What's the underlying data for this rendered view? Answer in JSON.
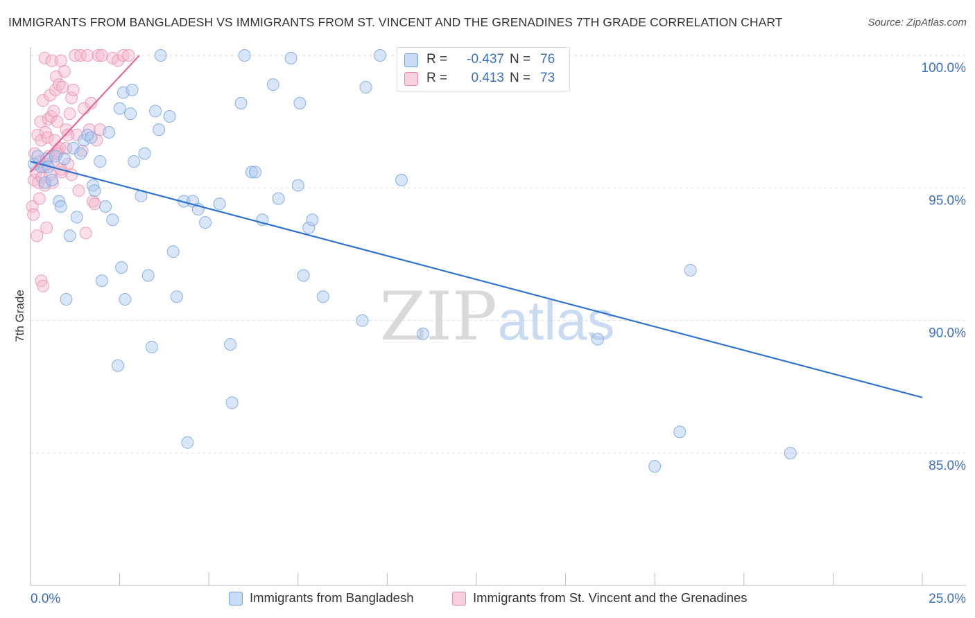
{
  "title": "IMMIGRANTS FROM BANGLADESH VS IMMIGRANTS FROM ST. VINCENT AND THE GRENADINES 7TH GRADE CORRELATION CHART",
  "source": "Source: ZipAtlas.com",
  "watermark": {
    "zip": "ZIP",
    "atlas": "atlas"
  },
  "colors": {
    "blue": "#a8c8f0",
    "blue_edge": "#6f9fe0",
    "blue_line": "#2f73d0",
    "pink": "#f5b8cc",
    "pink_edge": "#e98aaa",
    "pink_line": "#e4689a",
    "axis_text": "#3b6fc4",
    "grid": "#dddddd"
  },
  "legend": {
    "rows": [
      {
        "r_label": "R =",
        "r_value": "-0.437",
        "n_label": "N =",
        "n_value": "76",
        "color": "#a8c8f0"
      },
      {
        "r_label": "R =",
        "r_value": "0.413",
        "n_label": "N =",
        "n_value": "73",
        "color": "#f5b8cc"
      }
    ]
  },
  "chart_data": {
    "type": "scatter",
    "title": "IMMIGRANTS FROM BANGLADESH VS IMMIGRANTS FROM ST. VINCENT AND THE GRENADINES 7TH GRADE CORRELATION CHART",
    "xlabel": "",
    "ylabel": "7th Grade",
    "xlim": [
      0,
      25
    ],
    "ylim": [
      80.5,
      100.7
    ],
    "x_tick_labels": [
      "0.0%",
      "25.0%"
    ],
    "y_ticks": [
      85,
      90,
      95,
      100
    ],
    "y_tick_labels": [
      "85.0%",
      "90.0%",
      "95.0%",
      "100.0%"
    ],
    "legend_position": "top-center",
    "series": [
      {
        "name": "Immigrants from Bangladesh",
        "color": "#a8c8f0",
        "trend": {
          "x": [
            0,
            25
          ],
          "y": [
            96.0,
            87.1
          ]
        },
        "points": [
          [
            0.1,
            95.9
          ],
          [
            0.2,
            96.2
          ],
          [
            0.3,
            95.8
          ],
          [
            0.4,
            95.2
          ],
          [
            0.45,
            96.1
          ],
          [
            0.5,
            95.8
          ],
          [
            0.6,
            95.3
          ],
          [
            0.7,
            96.2
          ],
          [
            0.8,
            94.5
          ],
          [
            0.85,
            94.3
          ],
          [
            0.95,
            96.1
          ],
          [
            1.0,
            90.8
          ],
          [
            1.1,
            93.2
          ],
          [
            1.2,
            96.5
          ],
          [
            1.3,
            93.9
          ],
          [
            1.4,
            96.3
          ],
          [
            1.5,
            96.8
          ],
          [
            1.6,
            97.0
          ],
          [
            1.7,
            96.9
          ],
          [
            1.75,
            95.1
          ],
          [
            1.8,
            94.9
          ],
          [
            1.95,
            96.0
          ],
          [
            2.0,
            91.5
          ],
          [
            2.1,
            94.3
          ],
          [
            2.2,
            97.1
          ],
          [
            2.3,
            93.8
          ],
          [
            2.45,
            88.3
          ],
          [
            2.5,
            98.0
          ],
          [
            2.55,
            92.0
          ],
          [
            2.6,
            98.6
          ],
          [
            2.65,
            90.8
          ],
          [
            2.8,
            97.8
          ],
          [
            2.85,
            98.7
          ],
          [
            2.9,
            96.0
          ],
          [
            3.1,
            94.7
          ],
          [
            3.2,
            96.3
          ],
          [
            3.3,
            91.7
          ],
          [
            3.4,
            89.0
          ],
          [
            3.5,
            97.9
          ],
          [
            3.6,
            97.2
          ],
          [
            3.65,
            100.0
          ],
          [
            3.9,
            97.7
          ],
          [
            4.0,
            92.6
          ],
          [
            4.1,
            90.9
          ],
          [
            4.3,
            94.5
          ],
          [
            4.4,
            85.4
          ],
          [
            4.55,
            94.5
          ],
          [
            4.7,
            94.2
          ],
          [
            4.9,
            93.7
          ],
          [
            5.3,
            94.4
          ],
          [
            5.6,
            89.1
          ],
          [
            5.65,
            86.9
          ],
          [
            5.9,
            98.2
          ],
          [
            6.0,
            100.0
          ],
          [
            6.2,
            95.6
          ],
          [
            6.3,
            95.6
          ],
          [
            6.5,
            93.8
          ],
          [
            6.8,
            98.9
          ],
          [
            6.95,
            94.6
          ],
          [
            7.3,
            99.9
          ],
          [
            7.5,
            95.1
          ],
          [
            7.55,
            98.2
          ],
          [
            7.65,
            91.7
          ],
          [
            7.8,
            93.5
          ],
          [
            7.9,
            93.8
          ],
          [
            8.2,
            90.9
          ],
          [
            9.3,
            90.0
          ],
          [
            9.4,
            98.8
          ],
          [
            9.8,
            100.0
          ],
          [
            10.4,
            95.3
          ],
          [
            11.0,
            89.5
          ],
          [
            15.9,
            89.3
          ],
          [
            17.5,
            84.5
          ],
          [
            18.2,
            85.8
          ],
          [
            18.5,
            91.9
          ],
          [
            21.3,
            85.0
          ]
        ]
      },
      {
        "name": "Immigrants from St. Vincent and the Grenadines",
        "color": "#f5b8cc",
        "trend": {
          "x": [
            0,
            3.05
          ],
          "y": [
            95.6,
            100.0
          ]
        },
        "points": [
          [
            0.05,
            94.3
          ],
          [
            0.08,
            94.0
          ],
          [
            0.1,
            95.3
          ],
          [
            0.12,
            96.3
          ],
          [
            0.15,
            95.6
          ],
          [
            0.18,
            93.2
          ],
          [
            0.2,
            97.0
          ],
          [
            0.22,
            95.2
          ],
          [
            0.25,
            94.6
          ],
          [
            0.28,
            97.5
          ],
          [
            0.3,
            96.8
          ],
          [
            0.32,
            95.4
          ],
          [
            0.35,
            98.3
          ],
          [
            0.38,
            95.8
          ],
          [
            0.4,
            99.9
          ],
          [
            0.42,
            97.1
          ],
          [
            0.45,
            95.9
          ],
          [
            0.48,
            96.9
          ],
          [
            0.5,
            97.6
          ],
          [
            0.52,
            96.2
          ],
          [
            0.55,
            98.5
          ],
          [
            0.58,
            97.7
          ],
          [
            0.6,
            99.8
          ],
          [
            0.62,
            95.2
          ],
          [
            0.65,
            97.9
          ],
          [
            0.68,
            96.8
          ],
          [
            0.7,
            98.7
          ],
          [
            0.72,
            99.2
          ],
          [
            0.75,
            97.5
          ],
          [
            0.78,
            96.4
          ],
          [
            0.8,
            98.9
          ],
          [
            0.82,
            96.5
          ],
          [
            0.85,
            99.8
          ],
          [
            0.88,
            95.6
          ],
          [
            0.9,
            98.8
          ],
          [
            0.95,
            99.4
          ],
          [
            1.0,
            97.2
          ],
          [
            1.05,
            95.9
          ],
          [
            1.1,
            97.8
          ],
          [
            1.15,
            98.4
          ],
          [
            1.2,
            98.7
          ],
          [
            1.25,
            100.0
          ],
          [
            1.3,
            97.0
          ],
          [
            1.35,
            94.9
          ],
          [
            1.4,
            100.0
          ],
          [
            1.45,
            96.4
          ],
          [
            1.5,
            98.0
          ],
          [
            1.55,
            93.3
          ],
          [
            1.6,
            100.0
          ],
          [
            1.65,
            97.2
          ],
          [
            1.7,
            98.2
          ],
          [
            1.75,
            94.5
          ],
          [
            1.8,
            94.4
          ],
          [
            1.85,
            96.8
          ],
          [
            1.9,
            100.0
          ],
          [
            1.95,
            97.2
          ],
          [
            2.0,
            100.0
          ],
          [
            2.3,
            99.9
          ],
          [
            2.45,
            99.8
          ],
          [
            2.6,
            100.0
          ],
          [
            0.3,
            91.5
          ],
          [
            0.35,
            91.3
          ],
          [
            0.45,
            93.5
          ],
          [
            0.55,
            95.5
          ],
          [
            0.65,
            96.0
          ],
          [
            0.75,
            96.3
          ],
          [
            0.85,
            95.7
          ],
          [
            1.0,
            96.5
          ],
          [
            1.05,
            97.0
          ],
          [
            1.15,
            95.5
          ],
          [
            0.25,
            96.0
          ],
          [
            0.4,
            95.1
          ],
          [
            2.75,
            100.0
          ]
        ]
      }
    ]
  },
  "bottom_legend": [
    {
      "label": "Immigrants from Bangladesh",
      "color": "#a8c8f0"
    },
    {
      "label": "Immigrants from St. Vincent and the Grenadines",
      "color": "#f5b8cc"
    }
  ]
}
